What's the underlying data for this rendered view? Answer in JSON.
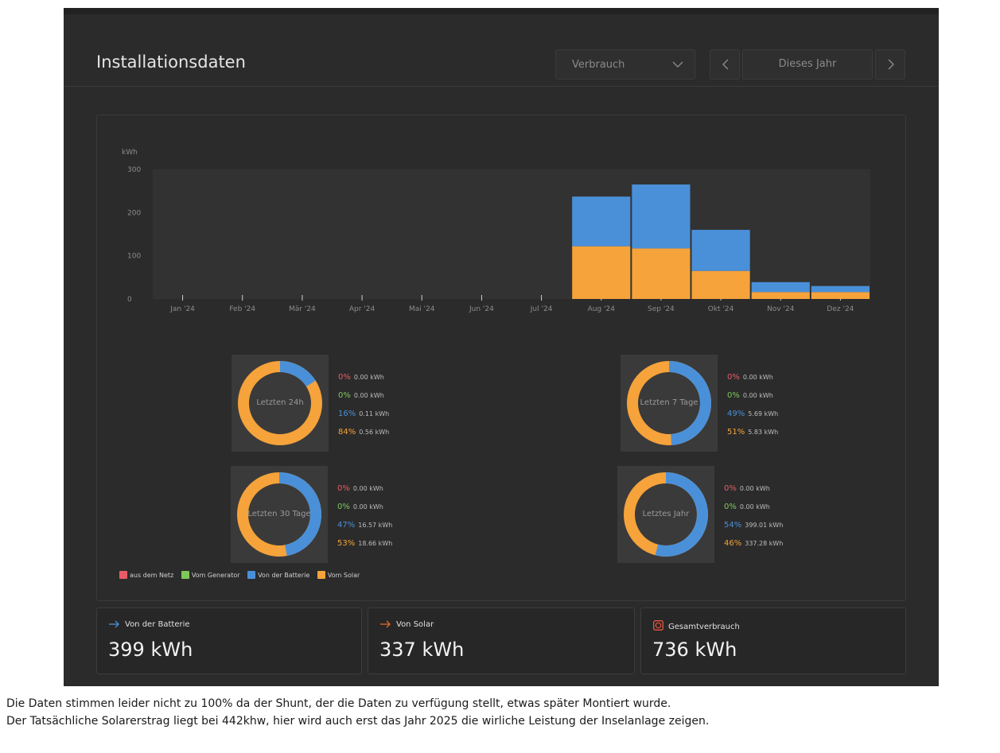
{
  "header": {
    "title": "Installationsdaten",
    "dropdown_value": "Verbrauch",
    "period_label": "Dieses Jahr"
  },
  "colors": {
    "grid": "#e85b66",
    "generator": "#7fc75a",
    "battery": "#4a90d9",
    "solar": "#f5a33a"
  },
  "chart_data": {
    "type": "bar",
    "stacked": true,
    "ylabel": "kWh",
    "ylim": [
      0,
      300
    ],
    "yticks": [
      0,
      100,
      200,
      300
    ],
    "categories": [
      "Jan '24",
      "Feb '24",
      "Mär '24",
      "Apr '24",
      "Mai '24",
      "Jun '24",
      "Jul '24",
      "Aug '24",
      "Sep '24",
      "Okt '24",
      "Nov '24",
      "Dez '24"
    ],
    "series": [
      {
        "name": "Vom Solar",
        "color": "#f5a33a",
        "values": [
          0,
          0,
          0,
          0,
          0,
          0,
          0,
          122,
          117,
          65,
          16,
          16
        ]
      },
      {
        "name": "Von der Batterie",
        "color": "#4a90d9",
        "values": [
          0,
          0,
          0,
          0,
          0,
          0,
          0,
          115,
          148,
          95,
          23,
          14
        ]
      }
    ]
  },
  "donuts": [
    {
      "label": "Letzten 24h",
      "grid_pct": "0%",
      "grid_kwh": "0.00 kWh",
      "gen_pct": "0%",
      "gen_kwh": "0.00 kWh",
      "bat_pct": "16%",
      "bat_kwh": "0.11 kWh",
      "sol_pct": "84%",
      "sol_kwh": "0.56 kWh",
      "battery_share": 0.16
    },
    {
      "label": "Letzten 7 Tage",
      "grid_pct": "0%",
      "grid_kwh": "0.00 kWh",
      "gen_pct": "0%",
      "gen_kwh": "0.00 kWh",
      "bat_pct": "49%",
      "bat_kwh": "5.69 kWh",
      "sol_pct": "51%",
      "sol_kwh": "5.83 kWh",
      "battery_share": 0.49
    },
    {
      "label": "Letzten 30 Tage",
      "grid_pct": "0%",
      "grid_kwh": "0.00 kWh",
      "gen_pct": "0%",
      "gen_kwh": "0.00 kWh",
      "bat_pct": "47%",
      "bat_kwh": "16.57 kWh",
      "sol_pct": "53%",
      "sol_kwh": "18.66 kWh",
      "battery_share": 0.47
    },
    {
      "label": "Letztes Jahr",
      "grid_pct": "0%",
      "grid_kwh": "0.00 kWh",
      "gen_pct": "0%",
      "gen_kwh": "0.00 kWh",
      "bat_pct": "54%",
      "bat_kwh": "399.01 kWh",
      "sol_pct": "46%",
      "sol_kwh": "337.28 kWh",
      "battery_share": 0.54
    }
  ],
  "legend": [
    "aus dem Netz",
    "Vom Generator",
    "Von der Batterie",
    "Vom Solar"
  ],
  "cards": [
    {
      "label": "Von der Batterie",
      "value": "399 kWh",
      "icon": "arrow-right-icon",
      "icon_color": "#4a90d9"
    },
    {
      "label": "Von Solar",
      "value": "337 kWh",
      "icon": "arrow-right-icon",
      "icon_color": "#e06a2a"
    },
    {
      "label": "Gesamtverbrauch",
      "value": "736 kWh",
      "icon": "power-outlet-icon",
      "icon_color": "#e8553d"
    }
  ],
  "note": [
    "Die Daten stimmen leider nicht zu 100% da der Shunt, der die Daten zu verfügung stellt, etwas später Montiert wurde.",
    "Der Tatsächliche Solarerstrag liegt bei 442khw, hier wird auch erst das Jahr 2025 die wirliche Leistung der Inselanlage zeigen."
  ]
}
